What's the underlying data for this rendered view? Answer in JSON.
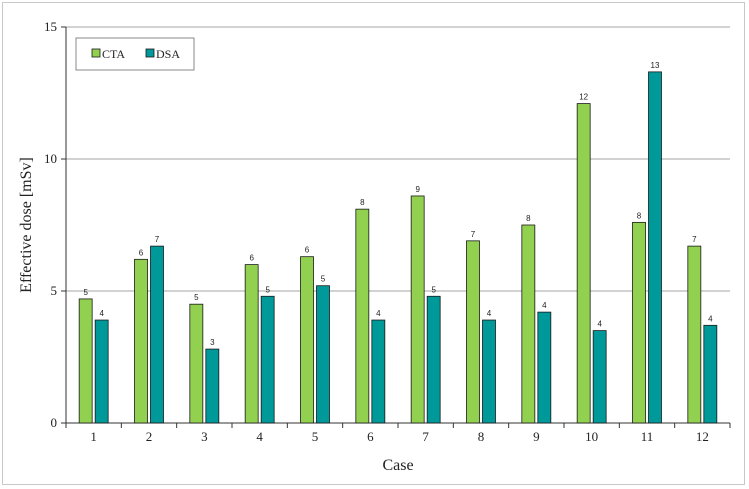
{
  "chart_data": {
    "type": "bar",
    "xlabel": "Case",
    "ylabel": "Effective dose [mSv]",
    "ylim": [
      0,
      15
    ],
    "yticks": [
      0,
      5,
      10,
      15
    ],
    "grid": "horizontal",
    "legend_position": "top-left",
    "categories": [
      "1",
      "2",
      "3",
      "4",
      "5",
      "6",
      "7",
      "8",
      "9",
      "10",
      "11",
      "12"
    ],
    "series": [
      {
        "name": "CTA",
        "color": "#92d050",
        "values": [
          4.7,
          6.2,
          4.5,
          6.0,
          6.3,
          8.1,
          8.6,
          6.9,
          7.5,
          12.1,
          7.6,
          6.7
        ],
        "labels": [
          "5",
          "6",
          "5",
          "6",
          "6",
          "8",
          "9",
          "7",
          "8",
          "12",
          "8",
          "7"
        ]
      },
      {
        "name": "DSA",
        "color": "#009999",
        "values": [
          3.9,
          6.7,
          2.8,
          4.8,
          5.2,
          3.9,
          4.8,
          3.9,
          4.2,
          3.5,
          13.3,
          3.7
        ],
        "labels": [
          "4",
          "7",
          "3",
          "5",
          "5",
          "4",
          "5",
          "4",
          "4",
          "4",
          "13",
          "4"
        ]
      }
    ]
  }
}
